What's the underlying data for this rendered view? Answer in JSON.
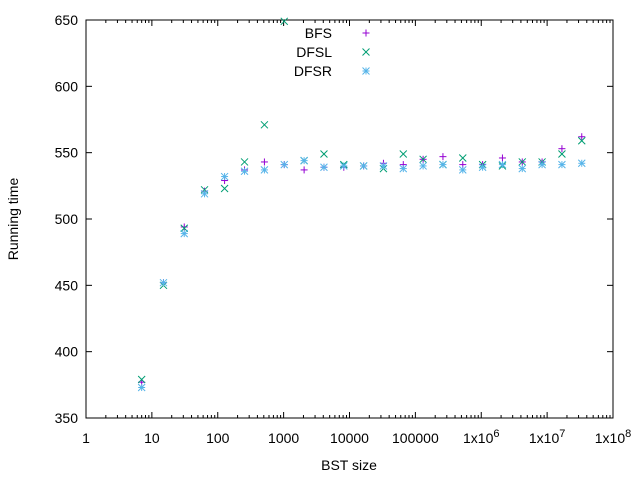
{
  "chart_data": {
    "type": "scatter",
    "xlabel": "BST size",
    "ylabel": "Running time",
    "x_scale": "log",
    "xlim": [
      1,
      100000000
    ],
    "ylim": [
      350,
      650
    ],
    "x_ticks": [
      {
        "value": 1,
        "base": "1"
      },
      {
        "value": 10,
        "base": "10"
      },
      {
        "value": 100,
        "base": "100"
      },
      {
        "value": 1000,
        "base": "1000"
      },
      {
        "value": 10000,
        "base": "10000"
      },
      {
        "value": 100000,
        "base": "100000"
      },
      {
        "value": 1000000,
        "base": "1x10",
        "exp": "6"
      },
      {
        "value": 10000000,
        "base": "1x10",
        "exp": "7"
      },
      {
        "value": 100000000,
        "base": "1x10",
        "exp": "8"
      }
    ],
    "y_ticks": [
      350,
      400,
      450,
      500,
      550,
      600,
      650
    ],
    "legend_position": "top-center",
    "grid": false,
    "series": [
      {
        "name": "BFS",
        "marker": "plus",
        "color": "#9400d3",
        "points": [
          [
            7,
            377
          ],
          [
            15,
            452
          ],
          [
            31,
            494
          ],
          [
            63,
            521
          ],
          [
            127,
            529
          ],
          [
            255,
            537
          ],
          [
            511,
            543
          ],
          [
            1023,
            541
          ],
          [
            2047,
            537
          ],
          [
            4095,
            539
          ],
          [
            8191,
            539
          ],
          [
            16383,
            540
          ],
          [
            32767,
            542
          ],
          [
            65535,
            541
          ],
          [
            131071,
            545
          ],
          [
            262143,
            547
          ],
          [
            524287,
            541
          ],
          [
            1048575,
            541
          ],
          [
            2097151,
            546
          ],
          [
            4194303,
            543
          ],
          [
            8388607,
            543
          ],
          [
            16777215,
            553
          ],
          [
            33554431,
            562
          ]
        ]
      },
      {
        "name": "DFSL",
        "marker": "x",
        "color": "#009e73",
        "points": [
          [
            7,
            379
          ],
          [
            15,
            450
          ],
          [
            31,
            493
          ],
          [
            63,
            522
          ],
          [
            127,
            523
          ],
          [
            255,
            543
          ],
          [
            511,
            571
          ],
          [
            1023,
            649
          ],
          [
            2047,
            544
          ],
          [
            4095,
            549
          ],
          [
            8191,
            541
          ],
          [
            16383,
            540
          ],
          [
            32767,
            538
          ],
          [
            65535,
            549
          ],
          [
            131071,
            545
          ],
          [
            262143,
            541
          ],
          [
            524287,
            546
          ],
          [
            1048575,
            541
          ],
          [
            2097151,
            540
          ],
          [
            4194303,
            543
          ],
          [
            8388607,
            543
          ],
          [
            16777215,
            549
          ],
          [
            33554431,
            559
          ]
        ]
      },
      {
        "name": "DFSR",
        "marker": "star",
        "color": "#56b4e9",
        "points": [
          [
            7,
            373
          ],
          [
            15,
            452
          ],
          [
            31,
            489
          ],
          [
            63,
            519
          ],
          [
            127,
            532
          ],
          [
            255,
            536
          ],
          [
            511,
            537
          ],
          [
            1023,
            541
          ],
          [
            2047,
            544
          ],
          [
            4095,
            539
          ],
          [
            8191,
            540
          ],
          [
            16383,
            540
          ],
          [
            32767,
            540
          ],
          [
            65535,
            538
          ],
          [
            131071,
            540
          ],
          [
            262143,
            541
          ],
          [
            524287,
            537
          ],
          [
            1048575,
            539
          ],
          [
            2097151,
            541
          ],
          [
            4194303,
            538
          ],
          [
            8388607,
            541
          ],
          [
            16777215,
            541
          ],
          [
            33554431,
            542
          ]
        ]
      }
    ]
  }
}
